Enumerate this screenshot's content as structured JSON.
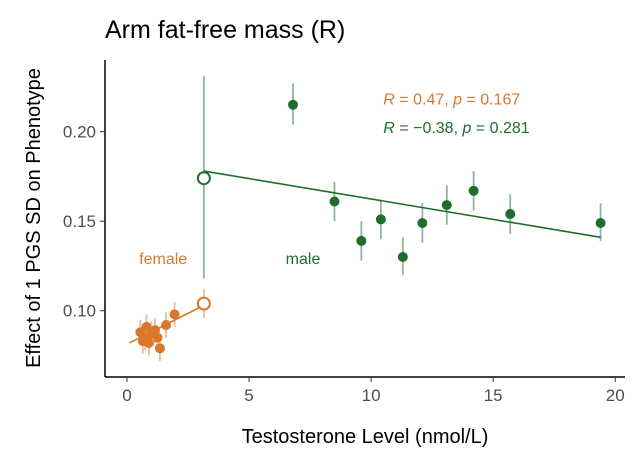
{
  "chart_data": {
    "type": "scatter",
    "title": "Arm fat-free mass (R)",
    "xlabel": "Testosterone Level (nmol/L)",
    "ylabel": "Effect of 1 PGS SD on Phenotype",
    "xlim": [
      -0.9,
      20.4
    ],
    "ylim": [
      0.063,
      0.24
    ],
    "x_ticks": [
      0,
      5,
      10,
      15,
      20
    ],
    "y_ticks": [
      0.1,
      0.15,
      0.2
    ],
    "x_tick_labels": [
      "0",
      "5",
      "10",
      "15",
      "20"
    ],
    "y_tick_labels": [
      "0.10",
      "0.15",
      "0.20"
    ],
    "grid": false,
    "series": [
      {
        "name": "female",
        "color": "#d9782d",
        "points": [
          {
            "x": 0.55,
            "y": 0.088,
            "lo": 0.081,
            "hi": 0.095
          },
          {
            "x": 0.65,
            "y": 0.083,
            "lo": 0.076,
            "hi": 0.09
          },
          {
            "x": 0.75,
            "y": 0.085,
            "lo": 0.078,
            "hi": 0.093
          },
          {
            "x": 0.8,
            "y": 0.091,
            "lo": 0.084,
            "hi": 0.098
          },
          {
            "x": 0.9,
            "y": 0.082,
            "lo": 0.075,
            "hi": 0.089
          },
          {
            "x": 1.0,
            "y": 0.087,
            "lo": 0.08,
            "hi": 0.094
          },
          {
            "x": 1.15,
            "y": 0.089,
            "lo": 0.082,
            "hi": 0.096
          },
          {
            "x": 1.25,
            "y": 0.085,
            "lo": 0.078,
            "hi": 0.092
          },
          {
            "x": 1.35,
            "y": 0.079,
            "lo": 0.072,
            "hi": 0.086
          },
          {
            "x": 1.6,
            "y": 0.092,
            "lo": 0.085,
            "hi": 0.099
          },
          {
            "x": 1.95,
            "y": 0.098,
            "lo": 0.091,
            "hi": 0.105
          }
        ],
        "open_point": {
          "x": 3.15,
          "y": 0.104,
          "lo": 0.096,
          "hi": 0.112
        },
        "fit_line": {
          "x": [
            0.1,
            3.15
          ],
          "y": [
            0.082,
            0.103
          ]
        },
        "label": "female",
        "stat_label": {
          "r_sym": "R",
          "r_text": " = 0.47, ",
          "p_sym": "p",
          "p_text": " = 0.167"
        }
      },
      {
        "name": "male",
        "color": "#1f6e2e",
        "points": [
          {
            "x": 6.8,
            "y": 0.215,
            "lo": 0.204,
            "hi": 0.227
          },
          {
            "x": 8.5,
            "y": 0.161,
            "lo": 0.15,
            "hi": 0.172
          },
          {
            "x": 9.6,
            "y": 0.139,
            "lo": 0.128,
            "hi": 0.15
          },
          {
            "x": 10.4,
            "y": 0.151,
            "lo": 0.14,
            "hi": 0.162
          },
          {
            "x": 11.3,
            "y": 0.13,
            "lo": 0.12,
            "hi": 0.141
          },
          {
            "x": 12.1,
            "y": 0.149,
            "lo": 0.138,
            "hi": 0.16
          },
          {
            "x": 13.1,
            "y": 0.159,
            "lo": 0.148,
            "hi": 0.17
          },
          {
            "x": 14.2,
            "y": 0.167,
            "lo": 0.156,
            "hi": 0.178
          },
          {
            "x": 15.7,
            "y": 0.154,
            "lo": 0.143,
            "hi": 0.165
          },
          {
            "x": 19.4,
            "y": 0.149,
            "lo": 0.139,
            "hi": 0.16
          }
        ],
        "open_point": {
          "x": 3.15,
          "y": 0.174,
          "lo": 0.118,
          "hi": 0.231
        },
        "fit_line": {
          "x": [
            3.15,
            19.4
          ],
          "y": [
            0.178,
            0.141
          ]
        },
        "label": "male",
        "stat_label": {
          "r_sym": "R",
          "r_text": " = −0.38, ",
          "p_sym": "p",
          "p_text": " = 0.281"
        }
      }
    ],
    "group_labels": [
      {
        "text": "female",
        "x": 0.5,
        "y": 0.1295
      },
      {
        "text": "male",
        "x": 6.5,
        "y": 0.1295
      }
    ],
    "stat_labels": [
      {
        "x": 10.5,
        "y": 0.2185
      },
      {
        "x": 10.5,
        "y": 0.2025
      }
    ]
  }
}
